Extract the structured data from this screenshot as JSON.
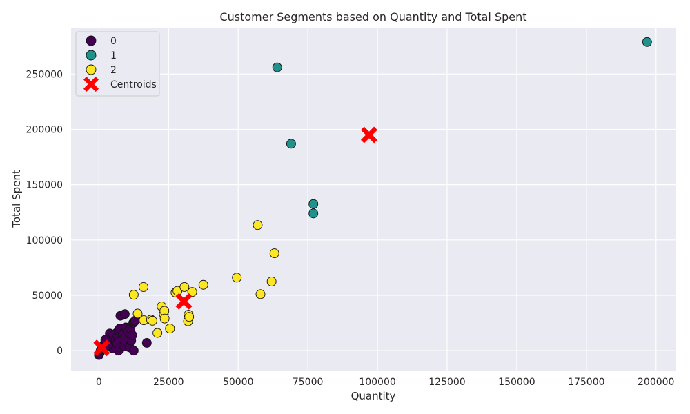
{
  "chart_data": {
    "type": "scatter",
    "title": "Customer Segments based on Quantity and Total Spent",
    "xlabel": "Quantity",
    "ylabel": "Total Spent",
    "xlim": [
      -10000,
      207000
    ],
    "ylim": [
      -18000,
      292000
    ],
    "x_ticks": [
      0,
      25000,
      50000,
      75000,
      100000,
      125000,
      150000,
      175000,
      200000
    ],
    "y_ticks": [
      0,
      50000,
      100000,
      150000,
      200000,
      250000
    ],
    "grid": true,
    "legend_position": "top-left",
    "series": [
      {
        "name": "0",
        "color": "#440154",
        "points": [
          [
            0,
            -4000
          ],
          [
            300,
            -2000
          ],
          [
            600,
            0
          ],
          [
            900,
            1000
          ],
          [
            1200,
            2500
          ],
          [
            1500,
            4000
          ],
          [
            2000,
            6000
          ],
          [
            2500,
            8000
          ],
          [
            3000,
            9000
          ],
          [
            3500,
            11000
          ],
          [
            3900,
            15500
          ],
          [
            4200,
            5000
          ],
          [
            4500,
            7000
          ],
          [
            4800,
            12000
          ],
          [
            5200,
            14000
          ],
          [
            5600,
            3000
          ],
          [
            6000,
            9500
          ],
          [
            6300,
            16000
          ],
          [
            6700,
            13000
          ],
          [
            7000,
            0
          ],
          [
            7200,
            18000
          ],
          [
            7500,
            20000
          ],
          [
            7700,
            31500
          ],
          [
            8000,
            6000
          ],
          [
            8300,
            11000
          ],
          [
            8600,
            15000
          ],
          [
            9000,
            4000
          ],
          [
            9300,
            33000
          ],
          [
            9600,
            21000
          ],
          [
            10000,
            8000
          ],
          [
            10300,
            17000
          ],
          [
            10600,
            12000
          ],
          [
            11000,
            3000
          ],
          [
            11300,
            20000
          ],
          [
            11600,
            9000
          ],
          [
            12000,
            14000
          ],
          [
            12300,
            25000
          ],
          [
            12600,
            26000
          ],
          [
            12500,
            0
          ],
          [
            13000,
            27000
          ],
          [
            17200,
            7000
          ],
          [
            5000,
            2000
          ],
          [
            3200,
            4500
          ],
          [
            6500,
            6500
          ],
          [
            8800,
            10000
          ],
          [
            2300,
            9800
          ]
        ]
      },
      {
        "name": "1",
        "color": "#21918c",
        "points": [
          [
            196800,
            279000
          ],
          [
            64000,
            256000
          ],
          [
            69000,
            187000
          ],
          [
            77000,
            132500
          ],
          [
            77000,
            124000
          ]
        ]
      },
      {
        "name": "2",
        "color": "#fde725",
        "points": [
          [
            12500,
            50500
          ],
          [
            13900,
            33500
          ],
          [
            16000,
            57500
          ],
          [
            16100,
            27500
          ],
          [
            18700,
            28000
          ],
          [
            19200,
            27000
          ],
          [
            21000,
            16000
          ],
          [
            22500,
            40000
          ],
          [
            23300,
            33000
          ],
          [
            23500,
            36000
          ],
          [
            23600,
            29000
          ],
          [
            25500,
            20000
          ],
          [
            27500,
            52500
          ],
          [
            28200,
            54000
          ],
          [
            30700,
            57500
          ],
          [
            32000,
            26500
          ],
          [
            32200,
            32500
          ],
          [
            32400,
            30500
          ],
          [
            33500,
            53000
          ],
          [
            37500,
            59500
          ],
          [
            49500,
            66000
          ],
          [
            57000,
            113500
          ],
          [
            58000,
            51000
          ],
          [
            62000,
            62500
          ],
          [
            63000,
            88000
          ]
        ]
      }
    ],
    "centroids": {
      "name": "Centroids",
      "color": "#ff0000",
      "points": [
        [
          1000,
          2500
        ],
        [
          97000,
          195000
        ],
        [
          30500,
          44500
        ]
      ]
    }
  }
}
